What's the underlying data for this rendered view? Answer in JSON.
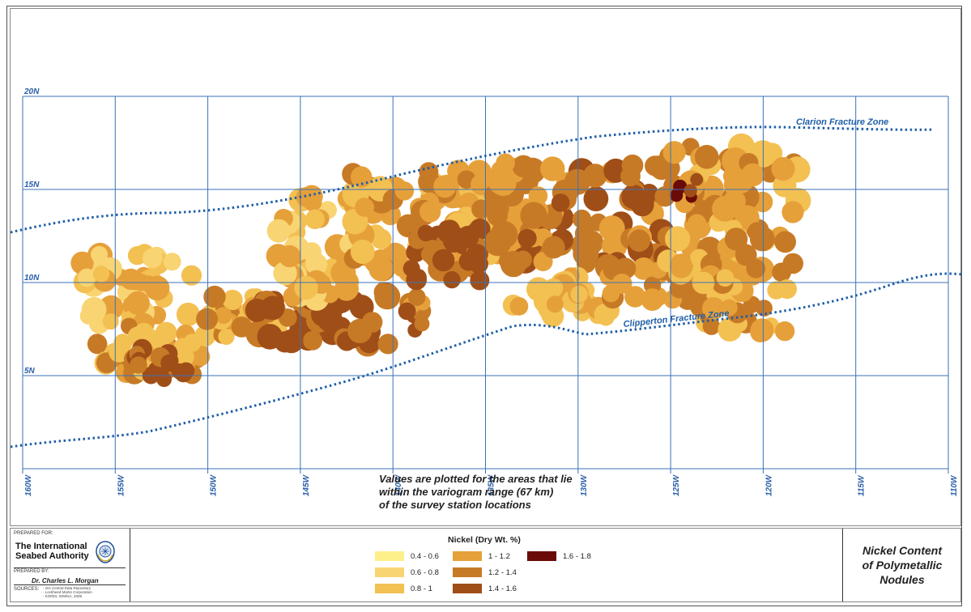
{
  "colors": {
    "grid": "#3a72b8",
    "label": "#2a5ea8",
    "fracture": "#1f5fa8",
    "c1": "#fdf08a",
    "c2": "#f8d472",
    "c3": "#f3c052",
    "c4": "#e6a03a",
    "c5": "#c77a26",
    "c6": "#a04e18",
    "c7": "#6b0b08"
  },
  "map": {
    "latitude_labels": [
      "20N",
      "15N",
      "10N",
      "5N"
    ],
    "longitude_labels": [
      "160W",
      "155W",
      "150W",
      "145W",
      "140W",
      "135W",
      "130W",
      "125W",
      "120W",
      "115W",
      "110W"
    ],
    "fracture_zones": {
      "clarion": "Clarion Fracture Zone",
      "clipperton": "Clipperton Fracture Zone"
    }
  },
  "caption": [
    "Values are plotted for the areas that lie",
    "within the variogram range (67 km)",
    "of the survey station locations"
  ],
  "title_block": {
    "prepared_for_label": "PREPARED FOR:",
    "organization_line1": "The International",
    "organization_line2": "Seabed Authority",
    "prepared_by_label": "PREPARED BY:",
    "prepared_by_name": "Dr. Charles L. Morgan",
    "sources_label": "SOURCES:",
    "sources": [
      "- ISA Central Data Repository",
      "- Lockheed Martin Corporation",
      "- KORDI, IOM/NA, 2008"
    ],
    "legend_title": "Nickel (Dry Wt. %)",
    "legend": [
      {
        "label": "0.4 - 0.6",
        "color": "#fdf08a"
      },
      {
        "label": "0.6 - 0.8",
        "color": "#f8d472"
      },
      {
        "label": "0.8 - 1",
        "color": "#f3c052"
      },
      {
        "label": "1 - 1.2",
        "color": "#e6a03a"
      },
      {
        "label": "1.2 - 1.4",
        "color": "#c77a26"
      },
      {
        "label": "1.4 - 1.6",
        "color": "#a04e18"
      },
      {
        "label": "1.6 - 1.8",
        "color": "#6b0b08"
      }
    ],
    "map_title": [
      "Nickel Content",
      "of Polymetallic",
      "Nodules"
    ]
  }
}
